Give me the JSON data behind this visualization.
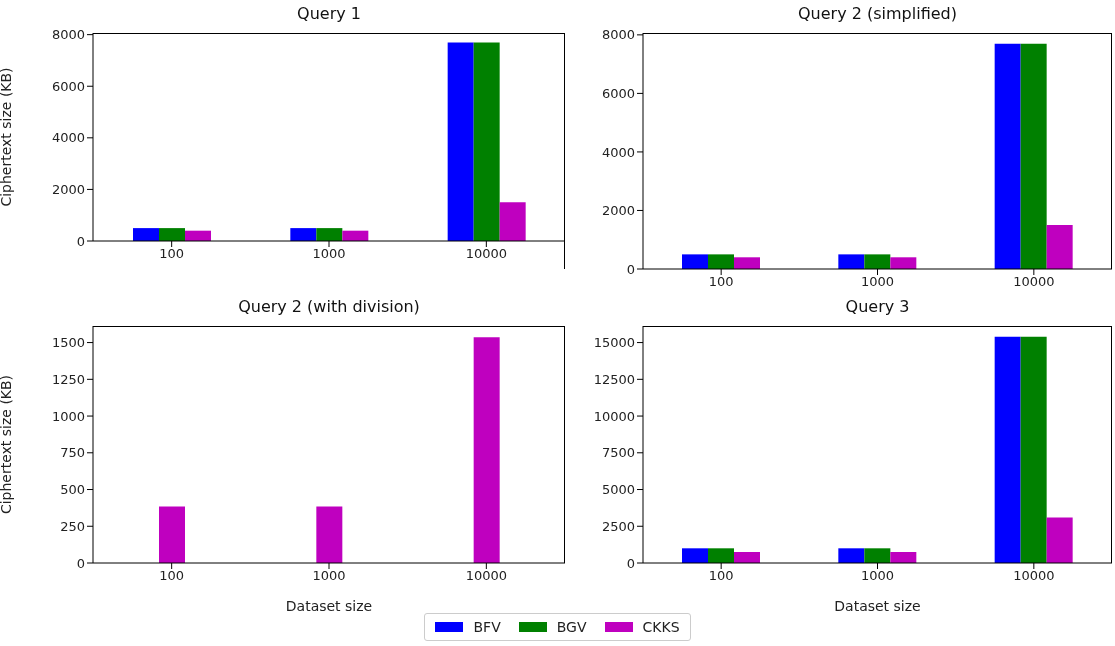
{
  "chart_data": [
    {
      "type": "bar",
      "title": "Query 1",
      "ylabel": "Ciphertext size (KB)",
      "categories": [
        "100",
        "1000",
        "10000"
      ],
      "ylim": [
        0,
        8064
      ],
      "yticks": [
        0,
        2000,
        4000,
        6000,
        8000
      ],
      "grid": false,
      "legend": "bottom",
      "series": [
        {
          "name": "BFV",
          "color": "#0000ff",
          "values": [
            500,
            500,
            7700
          ]
        },
        {
          "name": "BGV",
          "color": "#008000",
          "values": [
            500,
            500,
            7700
          ]
        },
        {
          "name": "CKKS",
          "color": "#bf00bf",
          "values": [
            400,
            400,
            1500
          ]
        }
      ]
    },
    {
      "type": "bar",
      "title": "Query 2 (simplified)",
      "categories": [
        "100",
        "1000",
        "10000"
      ],
      "ylim": [
        0,
        8064
      ],
      "yticks": [
        0,
        2000,
        4000,
        6000,
        8000
      ],
      "grid": false,
      "series": [
        {
          "color": "#0000ff",
          "values": [
            500,
            500,
            7700
          ]
        },
        {
          "color": "#008000",
          "values": [
            500,
            500,
            7700
          ]
        },
        {
          "color": "#bf00bf",
          "values": [
            400,
            400,
            1500
          ]
        }
      ]
    },
    {
      "type": "bar",
      "title": "Query 2 (with division)",
      "ylabel": "Ciphertext size (KB)",
      "xlabel": "Dataset size",
      "categories": [
        "100",
        "1000",
        "10000"
      ],
      "ylim": [
        0,
        1612.8
      ],
      "yticks": [
        0,
        250,
        500,
        750,
        1000,
        1250,
        1500
      ],
      "grid": false,
      "series": [
        {
          "color": "#bf00bf",
          "values": [
            384,
            384,
            1536
          ]
        }
      ]
    },
    {
      "type": "bar",
      "title": "Query 3",
      "xlabel": "Dataset size",
      "categories": [
        "100",
        "1000",
        "10000"
      ],
      "ylim": [
        0,
        16128
      ],
      "yticks": [
        0,
        2500,
        5000,
        7500,
        10000,
        12500,
        15000
      ],
      "grid": false,
      "series": [
        {
          "color": "#0000ff",
          "values": [
            1000,
            1000,
            15400
          ]
        },
        {
          "color": "#008000",
          "values": [
            1000,
            1000,
            15400
          ]
        },
        {
          "color": "#bf00bf",
          "values": [
            750,
            750,
            3100
          ]
        }
      ]
    }
  ]
}
